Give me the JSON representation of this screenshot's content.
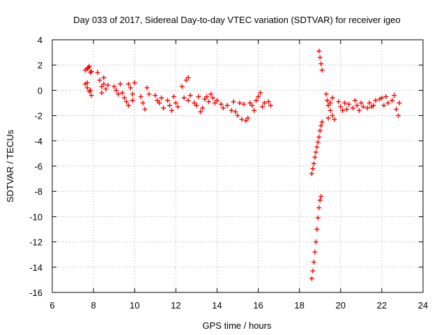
{
  "chart_data": {
    "type": "scatter",
    "title": "Day 033 of 2017, Sidereal Day-to-day VTEC variation (SDTVAR) for receiver igeo",
    "xlabel": "GPS time / hours",
    "ylabel": "SDTVAR / TECUs",
    "xlim": [
      6,
      24
    ],
    "ylim": [
      -16,
      4
    ],
    "xticks": [
      6,
      8,
      10,
      12,
      14,
      16,
      18,
      20,
      22,
      24
    ],
    "yticks": [
      4,
      2,
      0,
      -2,
      -4,
      -6,
      -8,
      -10,
      -12,
      -14,
      -16
    ],
    "grid": true,
    "marker": "+",
    "series": [
      {
        "name": "SDTVAR",
        "color": "#ff0000",
        "points": [
          [
            7.6,
            1.6
          ],
          [
            7.7,
            1.7
          ],
          [
            7.8,
            1.9
          ],
          [
            7.9,
            1.5
          ],
          [
            7.75,
            1.8
          ],
          [
            7.85,
            1.4
          ],
          [
            7.6,
            0.5
          ],
          [
            7.7,
            0.2
          ],
          [
            7.8,
            -0.1
          ],
          [
            7.9,
            -0.4
          ],
          [
            7.7,
            0.6
          ],
          [
            7.85,
            0.0
          ],
          [
            8.2,
            1.4
          ],
          [
            8.3,
            0.8
          ],
          [
            8.4,
            0.3
          ],
          [
            8.5,
            0.5
          ],
          [
            8.6,
            0.1
          ],
          [
            8.4,
            -0.2
          ],
          [
            8.7,
            0.4
          ],
          [
            8.5,
            1.0
          ],
          [
            9.0,
            0.3
          ],
          [
            9.1,
            0.0
          ],
          [
            9.2,
            -0.3
          ],
          [
            9.3,
            0.5
          ],
          [
            9.4,
            -0.2
          ],
          [
            9.5,
            -0.6
          ],
          [
            9.6,
            -0.9
          ],
          [
            9.7,
            0.5
          ],
          [
            9.8,
            0.2
          ],
          [
            9.9,
            -0.3
          ],
          [
            10.0,
            0.6
          ],
          [
            9.7,
            -1.2
          ],
          [
            9.9,
            -0.8
          ],
          [
            10.3,
            -0.5
          ],
          [
            10.4,
            -1.0
          ],
          [
            10.5,
            -1.5
          ],
          [
            10.6,
            0.2
          ],
          [
            10.7,
            -0.3
          ],
          [
            11.0,
            -0.4
          ],
          [
            11.1,
            -0.8
          ],
          [
            11.2,
            -1.0
          ],
          [
            11.3,
            -0.6
          ],
          [
            11.4,
            -1.4
          ],
          [
            11.6,
            -0.8
          ],
          [
            11.7,
            -1.2
          ],
          [
            11.8,
            -1.6
          ],
          [
            11.9,
            -0.5
          ],
          [
            12.0,
            -1.0
          ],
          [
            12.1,
            -1.3
          ],
          [
            12.3,
            0.3
          ],
          [
            12.4,
            -0.6
          ],
          [
            12.5,
            0.8
          ],
          [
            12.6,
            1.0
          ],
          [
            12.6,
            -0.8
          ],
          [
            12.7,
            -0.4
          ],
          [
            12.9,
            -1.0
          ],
          [
            13.0,
            -1.2
          ],
          [
            13.1,
            -0.5
          ],
          [
            13.2,
            -1.7
          ],
          [
            13.3,
            -1.4
          ],
          [
            13.4,
            -0.7
          ],
          [
            13.5,
            -0.5
          ],
          [
            13.6,
            -0.9
          ],
          [
            13.7,
            -0.3
          ],
          [
            13.8,
            -0.6
          ],
          [
            13.9,
            -1.0
          ],
          [
            14.0,
            -0.8
          ],
          [
            14.2,
            -1.1
          ],
          [
            14.3,
            -1.4
          ],
          [
            14.5,
            -1.2
          ],
          [
            14.7,
            -1.6
          ],
          [
            14.8,
            -0.9
          ],
          [
            14.9,
            -1.7
          ],
          [
            15.0,
            -2.0
          ],
          [
            15.1,
            -1.0
          ],
          [
            15.2,
            -2.3
          ],
          [
            15.3,
            -1.1
          ],
          [
            15.4,
            -2.4
          ],
          [
            15.5,
            -2.2
          ],
          [
            15.6,
            -1.0
          ],
          [
            15.7,
            -1.2
          ],
          [
            15.8,
            -1.6
          ],
          [
            15.9,
            -0.8
          ],
          [
            16.0,
            -0.5
          ],
          [
            16.1,
            -0.2
          ],
          [
            16.2,
            -1.3
          ],
          [
            16.3,
            -1.0
          ],
          [
            16.5,
            -0.9
          ],
          [
            16.6,
            -1.2
          ],
          [
            18.6,
            -6.6
          ],
          [
            18.65,
            -6.2
          ],
          [
            18.7,
            -5.8
          ],
          [
            18.75,
            -5.3
          ],
          [
            18.8,
            -4.9
          ],
          [
            18.85,
            -4.5
          ],
          [
            18.9,
            -4.1
          ],
          [
            18.95,
            -3.7
          ],
          [
            19.0,
            -3.2
          ],
          [
            19.05,
            -2.8
          ],
          [
            19.1,
            -2.5
          ],
          [
            18.6,
            -14.9
          ],
          [
            18.65,
            -14.3
          ],
          [
            18.7,
            -13.6
          ],
          [
            18.75,
            -12.8
          ],
          [
            18.8,
            -12.0
          ],
          [
            18.85,
            -11.0
          ],
          [
            18.9,
            -10.1
          ],
          [
            18.95,
            -9.3
          ],
          [
            19.0,
            -8.7
          ],
          [
            19.05,
            -8.4
          ],
          [
            18.95,
            3.1
          ],
          [
            19.0,
            2.6
          ],
          [
            19.05,
            2.1
          ],
          [
            19.1,
            1.6
          ],
          [
            19.3,
            -0.3
          ],
          [
            19.35,
            -0.8
          ],
          [
            19.4,
            -1.2
          ],
          [
            19.5,
            -1.6
          ],
          [
            19.6,
            -2.0
          ],
          [
            19.7,
            -2.3
          ],
          [
            19.4,
            -2.2
          ],
          [
            19.5,
            -1.0
          ],
          [
            19.6,
            -0.6
          ],
          [
            19.9,
            -0.9
          ],
          [
            20.0,
            -1.3
          ],
          [
            20.1,
            -1.6
          ],
          [
            20.2,
            -1.0
          ],
          [
            20.3,
            -1.5
          ],
          [
            20.4,
            -1.1
          ],
          [
            20.6,
            -1.4
          ],
          [
            20.7,
            -0.8
          ],
          [
            20.8,
            -1.2
          ],
          [
            20.9,
            -1.6
          ],
          [
            21.0,
            -1.0
          ],
          [
            21.1,
            -1.3
          ],
          [
            21.3,
            -1.4
          ],
          [
            21.4,
            -1.0
          ],
          [
            21.5,
            -1.3
          ],
          [
            21.6,
            -1.2
          ],
          [
            21.7,
            -0.8
          ],
          [
            21.9,
            -0.7
          ],
          [
            22.0,
            -0.6
          ],
          [
            22.1,
            -1.2
          ],
          [
            22.2,
            -0.5
          ],
          [
            22.3,
            -1.0
          ],
          [
            22.5,
            -0.8
          ],
          [
            22.6,
            -0.4
          ],
          [
            22.7,
            -1.5
          ],
          [
            22.8,
            -2.0
          ],
          [
            22.85,
            -1.0
          ]
        ]
      }
    ]
  }
}
